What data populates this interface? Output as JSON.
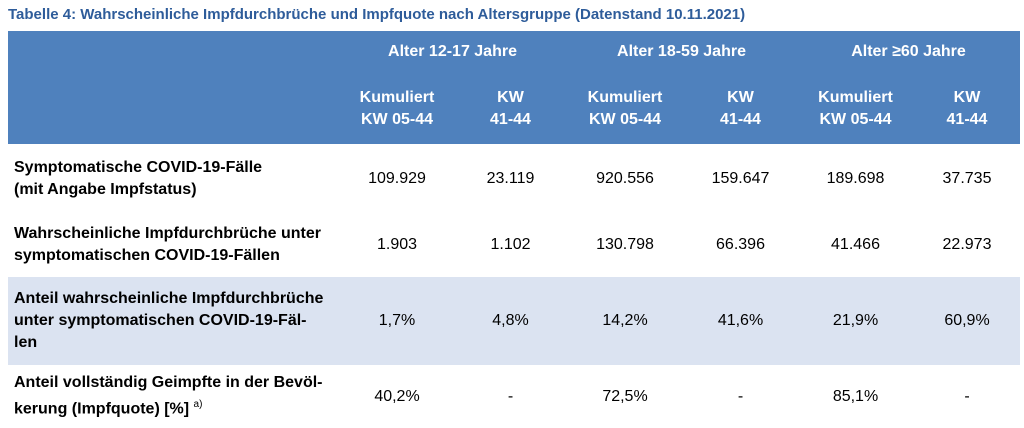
{
  "caption": "Tabelle 4: Wahrscheinliche Impfdurchbrüche und Impfquote nach Altersgruppe (Datenstand 10.11.2021)",
  "age_groups": [
    "Alter 12-17 Jahre",
    "Alter 18-59 Jahre",
    "Alter ≥60 Jahre"
  ],
  "subheaders": {
    "kumuliert": [
      "Kumuliert",
      "KW 05-44"
    ],
    "kw": [
      "KW",
      "41-44"
    ]
  },
  "rows": [
    {
      "label_lines": [
        "Symptomatische COVID-19-Fälle",
        "(mit Angabe Impfstatus)"
      ],
      "values": [
        "109.929",
        "23.119",
        "920.556",
        "159.647",
        "189.698",
        "37.735"
      ]
    },
    {
      "label_lines": [
        "Wahrscheinliche Impfdurchbrüche unter",
        "symptomatischen COVID-19-Fällen"
      ],
      "values": [
        "1.903",
        "1.102",
        "130.798",
        "66.396",
        "41.466",
        "22.973"
      ]
    },
    {
      "label_lines": [
        "Anteil wahrscheinliche Impfdurchbrüche",
        "unter symptomatischen COVID-19-Fäl-",
        "len"
      ],
      "values": [
        "1,7%",
        "4,8%",
        "14,2%",
        "41,6%",
        "21,9%",
        "60,9%"
      ]
    },
    {
      "label_lines": [
        "Anteil vollständig Geimpfte in der Bevöl-",
        "kerung (Impfquote) [%]"
      ],
      "footnote": "a)",
      "values": [
        "40,2%",
        "-",
        "72,5%",
        "-",
        "85,1%",
        "-"
      ]
    }
  ],
  "colors": {
    "header_bg": "#4f81bd",
    "caption": "#2e5c9a",
    "highlight_row": "#dbe3f1"
  }
}
